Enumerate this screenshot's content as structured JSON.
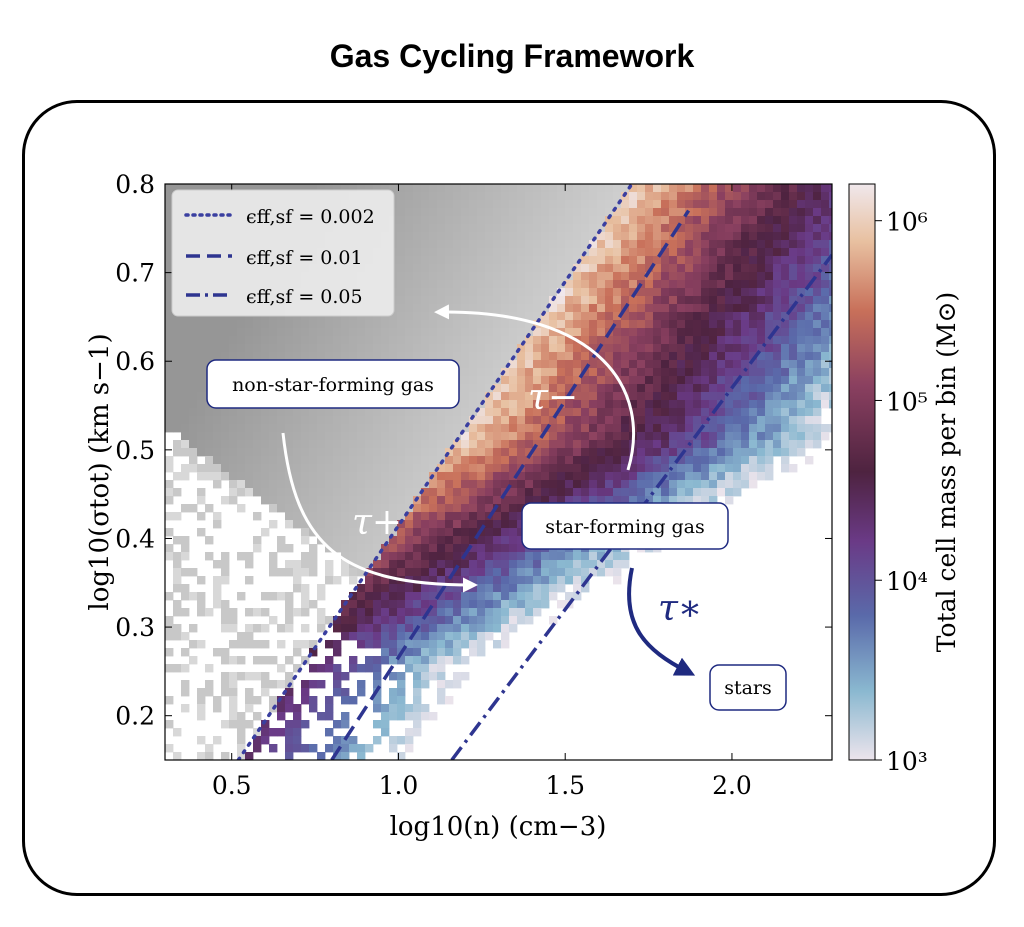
{
  "title": "Gas Cycling Framework",
  "chart_data": {
    "type": "heatmap",
    "xlabel": "log10(n) (cm−3)",
    "ylabel": "log10(σtot) (km s−1)",
    "xlim": [
      0.3,
      2.3
    ],
    "ylim": [
      0.15,
      0.8
    ],
    "xticks": [
      "0.5",
      "1.0",
      "1.5",
      "2.0"
    ],
    "yticks": [
      "0.2",
      "0.3",
      "0.4",
      "0.5",
      "0.6",
      "0.7",
      "0.8"
    ],
    "colorbar": {
      "label": "Total cell mass per bin (M⊙)",
      "scale": "log",
      "range": [
        1000,
        1600000
      ],
      "ticks": [
        "10³",
        "10⁴",
        "10⁵",
        "10⁶"
      ]
    },
    "legend": {
      "placement": "top-left",
      "entries": [
        {
          "label": "ϵff,sf = 0.002",
          "style": "dotted",
          "color": "#3a3fa0"
        },
        {
          "label": "ϵff,sf = 0.01",
          "style": "dashed",
          "color": "#2e3590"
        },
        {
          "label": "ϵff,sf = 0.05",
          "style": "dashdot",
          "color": "#2e3590"
        }
      ]
    },
    "threshold_lines": [
      {
        "name": "ϵff,sf = 0.002",
        "x": [
          0.52,
          1.7
        ],
        "y": [
          0.15,
          0.8
        ]
      },
      {
        "name": "ϵff,sf = 0.01",
        "x": [
          0.8,
          1.87
        ],
        "y": [
          0.15,
          0.77
        ]
      },
      {
        "name": "ϵff,sf = 0.05",
        "x": [
          1.16,
          2.3
        ],
        "y": [
          0.15,
          0.72
        ]
      }
    ],
    "annotations": [
      {
        "text": "non-star-forming gas",
        "type": "box"
      },
      {
        "text": "star-forming gas",
        "type": "box"
      },
      {
        "text": "stars",
        "type": "box"
      },
      {
        "text": "τ−",
        "type": "arrow-label"
      },
      {
        "text": "τ+",
        "type": "arrow-label"
      },
      {
        "text": "τ∗",
        "type": "arrow-label"
      }
    ]
  }
}
